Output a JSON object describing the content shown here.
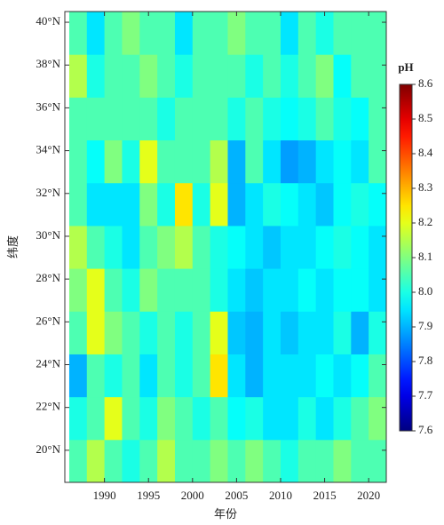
{
  "chart_data": {
    "type": "heatmap",
    "xlabel": "年份",
    "ylabel": "纬度",
    "xlim": [
      1985.5,
      2022
    ],
    "ylim": [
      18.5,
      40.5
    ],
    "xticks": [
      1990,
      1995,
      2000,
      2005,
      2010,
      2015,
      2020
    ],
    "yticks": [
      {
        "value": 20,
        "label": "20°N"
      },
      {
        "value": 22,
        "label": "22°N"
      },
      {
        "value": 24,
        "label": "24°N"
      },
      {
        "value": 26,
        "label": "26°N"
      },
      {
        "value": 28,
        "label": "28°N"
      },
      {
        "value": 30,
        "label": "30°N"
      },
      {
        "value": 32,
        "label": "32°N"
      },
      {
        "value": 34,
        "label": "34°N"
      },
      {
        "value": 36,
        "label": "36°N"
      },
      {
        "value": 38,
        "label": "38°N"
      },
      {
        "value": 40,
        "label": "40°N"
      }
    ],
    "colormap": "jet",
    "x": [
      1987,
      1989,
      1991,
      1993,
      1995,
      1997,
      1999,
      2001,
      2003,
      2005,
      2007,
      2009,
      2011,
      2013,
      2015,
      2017,
      2019,
      2021
    ],
    "y": [
      19.5,
      21.5,
      23.5,
      25.5,
      27.5,
      29.5,
      31.5,
      33.5,
      35.5,
      37.5,
      39.5
    ],
    "z": [
      [
        8.05,
        8.15,
        8.05,
        8.0,
        8.05,
        8.15,
        8.05,
        8.05,
        8.1,
        8.05,
        8.1,
        8.05,
        8.0,
        8.05,
        8.05,
        8.1,
        8.05,
        8.05
      ],
      [
        8.0,
        8.05,
        8.2,
        8.05,
        8.0,
        8.1,
        8.05,
        8.0,
        8.05,
        7.98,
        8.0,
        7.95,
        7.95,
        8.0,
        7.95,
        8.0,
        8.05,
        8.1
      ],
      [
        7.9,
        8.05,
        8.0,
        8.05,
        7.95,
        8.05,
        8.0,
        8.05,
        8.25,
        7.95,
        7.9,
        7.95,
        7.95,
        7.95,
        7.98,
        7.95,
        7.98,
        8.05
      ],
      [
        8.05,
        8.2,
        8.1,
        8.05,
        8.0,
        8.05,
        8.0,
        8.05,
        8.2,
        7.92,
        7.9,
        7.95,
        7.92,
        7.95,
        7.95,
        8.0,
        7.9,
        8.0
      ],
      [
        8.1,
        8.2,
        8.05,
        8.0,
        8.1,
        8.05,
        8.05,
        8.05,
        8.0,
        7.95,
        7.92,
        7.95,
        7.95,
        7.98,
        7.95,
        7.98,
        7.98,
        7.95
      ],
      [
        8.15,
        8.05,
        8.0,
        7.95,
        8.05,
        8.1,
        8.15,
        8.05,
        8.0,
        7.98,
        7.95,
        7.92,
        7.95,
        7.95,
        7.98,
        8.0,
        7.98,
        7.95
      ],
      [
        8.05,
        7.95,
        7.95,
        7.95,
        8.1,
        8.0,
        8.25,
        8.0,
        8.2,
        7.9,
        7.95,
        8.0,
        7.98,
        7.95,
        7.92,
        7.98,
        8.0,
        7.98
      ],
      [
        8.05,
        7.98,
        8.1,
        8.0,
        8.2,
        8.05,
        8.05,
        8.05,
        8.15,
        7.9,
        8.05,
        7.95,
        7.88,
        7.9,
        7.95,
        7.98,
        7.95,
        8.05
      ],
      [
        8.05,
        8.05,
        8.05,
        8.05,
        8.05,
        8.0,
        8.05,
        8.05,
        8.05,
        8.0,
        8.05,
        8.0,
        7.98,
        8.0,
        8.05,
        8.0,
        7.98,
        8.05
      ],
      [
        8.15,
        8.0,
        8.05,
        8.05,
        8.1,
        8.05,
        8.0,
        8.05,
        8.05,
        8.05,
        8.0,
        8.05,
        8.0,
        8.05,
        8.1,
        7.98,
        8.05,
        8.05
      ],
      [
        8.05,
        7.95,
        8.05,
        8.1,
        8.05,
        8.05,
        7.95,
        8.05,
        8.05,
        8.1,
        8.05,
        8.05,
        7.95,
        8.05,
        8.0,
        8.05,
        8.05,
        8.05
      ]
    ],
    "colorbar": {
      "label": "pH",
      "lim": [
        7.6,
        8.6
      ],
      "ticks": [
        7.6,
        7.7,
        7.8,
        7.9,
        {
          "value": 8,
          "label": "8.0"
        },
        8.1,
        8.2,
        8.3,
        8.4,
        8.5,
        8.6
      ]
    }
  }
}
